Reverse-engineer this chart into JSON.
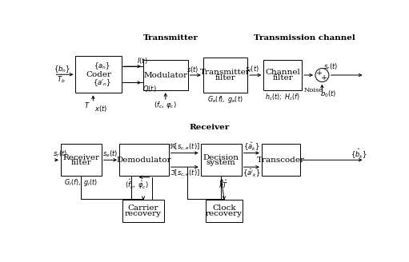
{
  "bg_color": "#ffffff",
  "box_color": "#ffffff",
  "box_edge": "#000000",
  "text_color": "#000000",
  "title_transmitter": "Transmitter",
  "title_channel": "Transmission channel",
  "title_receiver": "Receiver"
}
